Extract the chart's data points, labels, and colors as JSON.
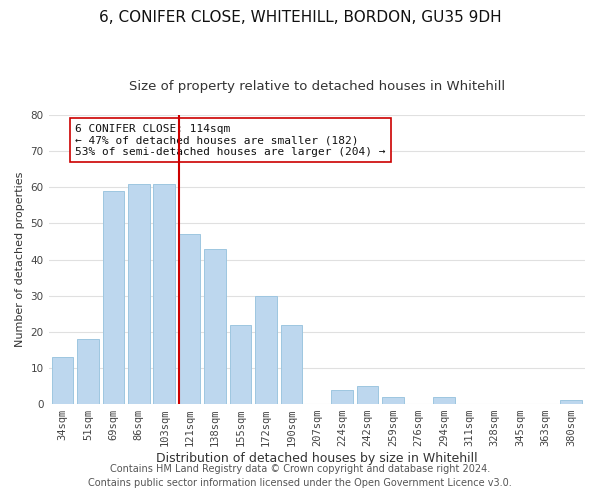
{
  "title": "6, CONIFER CLOSE, WHITEHILL, BORDON, GU35 9DH",
  "subtitle": "Size of property relative to detached houses in Whitehill",
  "xlabel": "Distribution of detached houses by size in Whitehill",
  "ylabel": "Number of detached properties",
  "bar_labels": [
    "34sqm",
    "51sqm",
    "69sqm",
    "86sqm",
    "103sqm",
    "121sqm",
    "138sqm",
    "155sqm",
    "172sqm",
    "190sqm",
    "207sqm",
    "224sqm",
    "242sqm",
    "259sqm",
    "276sqm",
    "294sqm",
    "311sqm",
    "328sqm",
    "345sqm",
    "363sqm",
    "380sqm"
  ],
  "bar_values": [
    13,
    18,
    59,
    61,
    61,
    47,
    43,
    22,
    30,
    22,
    0,
    4,
    5,
    2,
    0,
    2,
    0,
    0,
    0,
    0,
    1
  ],
  "bar_color": "#bdd7ee",
  "bar_edge_color": "#9ec6e0",
  "vline_color": "#cc0000",
  "vline_index": 5,
  "ylim": [
    0,
    80
  ],
  "yticks": [
    0,
    10,
    20,
    30,
    40,
    50,
    60,
    70,
    80
  ],
  "annotation_title": "6 CONIFER CLOSE: 114sqm",
  "annotation_line1": "← 47% of detached houses are smaller (182)",
  "annotation_line2": "53% of semi-detached houses are larger (204) →",
  "footer1": "Contains HM Land Registry data © Crown copyright and database right 2024.",
  "footer2": "Contains public sector information licensed under the Open Government Licence v3.0.",
  "bg_color": "#ffffff",
  "grid_color": "#e0e0e0",
  "title_fontsize": 11,
  "subtitle_fontsize": 9.5,
  "xlabel_fontsize": 9,
  "ylabel_fontsize": 8,
  "tick_fontsize": 7.5,
  "annotation_fontsize": 8,
  "footer_fontsize": 7
}
